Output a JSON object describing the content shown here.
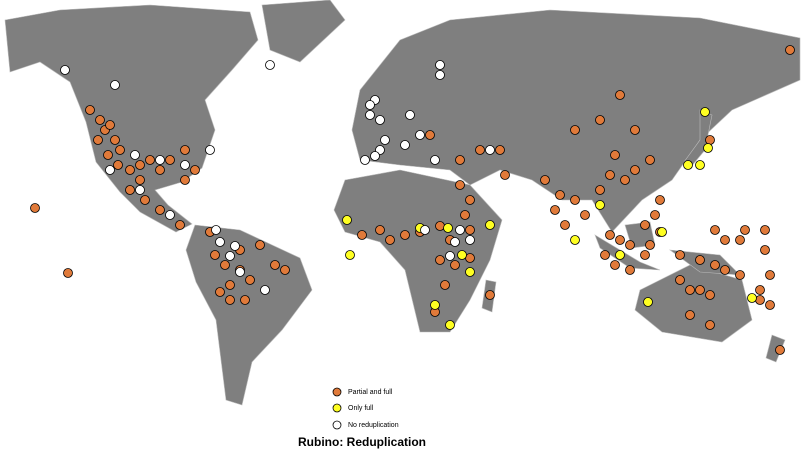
{
  "legend": {
    "items": [
      "Partial and full",
      "Only full",
      "No reduplication"
    ]
  },
  "title": "Rubino: Reduplication"
}
